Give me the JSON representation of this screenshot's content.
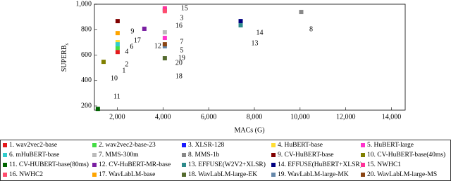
{
  "chart_data": {
    "type": "scatter",
    "x_label": "MACs (G)",
    "y_label": "SUPERB",
    "y_label_sub": "s",
    "xlim": [
      1000,
      14600
    ],
    "ylim": [
      167,
      1000
    ],
    "xticks": [
      {
        "value": 2000,
        "label": "2,000"
      },
      {
        "value": 4000,
        "label": "4,000"
      },
      {
        "value": 6000,
        "label": "6,000"
      },
      {
        "value": 8000,
        "label": "8,000"
      },
      {
        "value": 10000,
        "label": "10,000"
      },
      {
        "value": 12000,
        "label": "12,000"
      },
      {
        "value": 14000,
        "label": "14,000"
      }
    ],
    "yticks": [
      200,
      400,
      600,
      800,
      {
        "value": 1000,
        "label": "1,000"
      }
    ],
    "series": [
      {
        "name": "1. wav2vec2-base",
        "label": "1",
        "color": "#e41a1c",
        "x": [
          2015
        ],
        "values": [
          624
        ]
      },
      {
        "name": "2. wav2vec2-base-23",
        "label": "2",
        "color": "#44dd44",
        "x": [
          2015
        ],
        "values": [
          657
        ]
      },
      {
        "name": "3. XLSR-128",
        "label": "3",
        "color": "#1a1aff",
        "x": [
          4080
        ],
        "values": [
          956
        ]
      },
      {
        "name": "4. HuBERT-base",
        "label": "4",
        "color": "#ffdd33",
        "x": [
          2015
        ],
        "values": [
          702
        ]
      },
      {
        "name": "5. HuBERT-large",
        "label": "5",
        "color": "#ff33cc",
        "x": [
          4080
        ],
        "values": [
          735
        ]
      },
      {
        "name": "6. mHuBERT-base",
        "label": "6",
        "color": "#33cccc",
        "x": [
          2015
        ],
        "values": [
          685
        ]
      },
      {
        "name": "7. MMS-300m",
        "label": "7",
        "color": "#bbbbbb",
        "x": [
          4080
        ],
        "values": [
          779
        ]
      },
      {
        "name": "8. MMS-1b",
        "label": "8",
        "color": "#888888",
        "x": [
          10050
        ],
        "values": [
          939
        ]
      },
      {
        "name": "9. CV-HuBERT-base",
        "label": "9",
        "color": "#800000",
        "x": [
          2015
        ],
        "values": [
          867
        ]
      },
      {
        "name": "10. CV-HuBERT-base(40ms)",
        "label": "10",
        "color": "#808000",
        "x": [
          1400
        ],
        "values": [
          547
        ]
      },
      {
        "name": "11. CV-HUBERT-base(80ms)",
        "label": "11",
        "color": "#006400",
        "x": [
          1150
        ],
        "values": [
          177
        ]
      },
      {
        "name": "12. CV-HuBERT-MR-base",
        "label": "12",
        "color": "#7a1fa2",
        "x": [
          3185
        ],
        "values": [
          807
        ]
      },
      {
        "name": "13. EFFUSE(W2V2+XLSR)",
        "label": "13",
        "color": "#2e8b8b",
        "x": [
          7400
        ],
        "values": [
          834
        ]
      },
      {
        "name": "14. EFFUSE(HuBERT+XLSR)",
        "label": "14",
        "color": "#000080",
        "x": [
          7400
        ],
        "values": [
          867
        ]
      },
      {
        "name": "15. NWHC1",
        "label": "15",
        "color": "#ff3399",
        "x": [
          4080
        ],
        "values": [
          967
        ]
      },
      {
        "name": "16. NWHC2",
        "label": "16",
        "color": "#ff4d6d",
        "x": [
          4080
        ],
        "values": [
          945
        ]
      },
      {
        "name": "17. WavLabLM-base",
        "label": "17",
        "color": "#ffa500",
        "x": [
          2015
        ],
        "values": [
          773
        ]
      },
      {
        "name": "18. WavLabLM-large-EK",
        "label": "18",
        "color": "#556b2f",
        "x": [
          4080
        ],
        "values": [
          575
        ]
      },
      {
        "name": "19. WavLabLM-large-MK",
        "label": "19",
        "color": "#6688aa",
        "x": [
          4080
        ],
        "values": [
          669
        ]
      },
      {
        "name": "20. WavLabLM-large-MS",
        "label": "20",
        "color": "#8b4513",
        "x": [
          4080
        ],
        "values": [
          685
        ]
      }
    ]
  }
}
